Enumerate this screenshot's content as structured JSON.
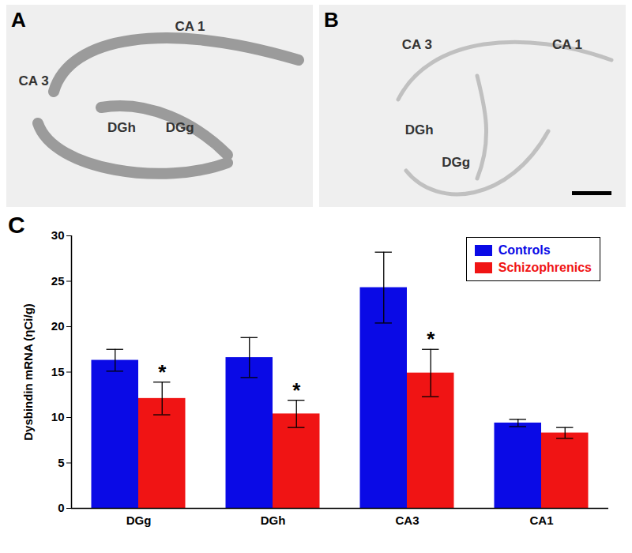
{
  "panels": [
    {
      "label": "A",
      "regions": [
        "CA 1",
        "CA 3",
        "DGh",
        "DGg"
      ]
    },
    {
      "label": "B",
      "regions": [
        "CA 3",
        "CA 1",
        "DGh",
        "DGg"
      ]
    }
  ],
  "chart_data": {
    "panel_label": "C",
    "type": "bar",
    "categories": [
      "DGg",
      "DGh",
      "CA3",
      "CA1"
    ],
    "series": [
      {
        "name": "Controls",
        "color": "#0a0ae6",
        "values": [
          16.3,
          16.6,
          24.3,
          9.4
        ],
        "errors": [
          1.2,
          2.2,
          3.9,
          0.4
        ]
      },
      {
        "name": "Schizophrenics",
        "color": "#f01414",
        "values": [
          12.1,
          10.4,
          14.9,
          8.3
        ],
        "errors": [
          1.8,
          1.5,
          2.6,
          0.6
        ],
        "annotations": [
          "*",
          "*",
          "*",
          null
        ]
      }
    ],
    "y_label": "Dysbindin mRNA (ηCi/g)",
    "ylim": [
      0,
      30
    ],
    "yticks": [
      0,
      5,
      10,
      15,
      20,
      25,
      30
    ],
    "grid": false,
    "legend": "top-right"
  }
}
